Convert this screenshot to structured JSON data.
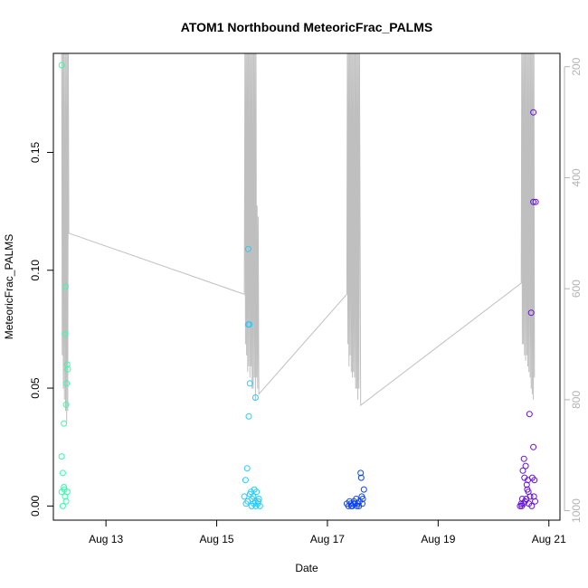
{
  "chart_data": {
    "type": "scatter",
    "title": "ATOM1 Northbound MeteoricFrac_PALMS",
    "xlabel": "Date",
    "ylabel": "MeteoricFrac_PALMS",
    "x_ticks": [
      "Aug 13",
      "Aug 15",
      "Aug 17",
      "Aug 19",
      "Aug 21"
    ],
    "x_tick_days": [
      13,
      15,
      17,
      19,
      21
    ],
    "xlim": [
      12.05,
      21.2
    ],
    "ylim": [
      -0.006,
      0.192
    ],
    "y_ticks": [
      "0.00",
      "0.05",
      "0.10",
      "0.15"
    ],
    "y_tick_values": [
      0.0,
      0.05,
      0.1,
      0.15
    ],
    "y2_ticks": [
      "200",
      "400",
      "600",
      "800",
      "1000"
    ],
    "y2_tick_values": [
      200,
      400,
      600,
      800,
      1000
    ],
    "y2lim": [
      1017,
      176
    ],
    "grid": false,
    "colors": {
      "series": [
        "#33ffaa",
        "#22ccff",
        "#1144ee",
        "#6611dd"
      ],
      "pressure_line": "#bfbfbf"
    },
    "series": [
      {
        "values": [
          [
            12.2,
            0.187
          ],
          [
            12.2,
            0.021
          ],
          [
            12.22,
            0.014
          ],
          [
            12.24,
            0.035
          ],
          [
            12.26,
            0.073
          ],
          [
            12.27,
            0.093
          ],
          [
            12.29,
            0.052
          ],
          [
            12.3,
            0.06
          ],
          [
            12.31,
            0.058
          ],
          [
            12.28,
            0.043
          ],
          [
            12.2,
            0.006
          ],
          [
            12.22,
            0.0
          ],
          [
            12.24,
            0.008
          ],
          [
            12.26,
            0.004
          ],
          [
            12.3,
            0.006
          ],
          [
            12.28,
            0.002
          ],
          [
            12.25,
            0.007
          ]
        ]
      },
      {
        "values": [
          [
            15.57,
            0.109
          ],
          [
            15.57,
            0.077
          ],
          [
            15.59,
            0.077
          ],
          [
            15.6,
            0.052
          ],
          [
            15.58,
            0.038
          ],
          [
            15.7,
            0.046
          ],
          [
            15.55,
            0.016
          ],
          [
            15.52,
            0.011
          ],
          [
            15.5,
            0.004
          ],
          [
            15.53,
            0.001
          ],
          [
            15.56,
            0.002
          ],
          [
            15.6,
            0.005
          ],
          [
            15.62,
            0.006
          ],
          [
            15.64,
            0.003
          ],
          [
            15.66,
            0.004
          ],
          [
            15.68,
            0.007
          ],
          [
            15.7,
            0.002
          ],
          [
            15.72,
            0.006
          ],
          [
            15.74,
            0.001
          ],
          [
            15.76,
            0.003
          ],
          [
            15.78,
            0.0
          ],
          [
            15.63,
            0.0
          ],
          [
            15.67,
            0.001
          ],
          [
            15.71,
            0.0
          ],
          [
            15.75,
            0.002
          ]
        ]
      },
      {
        "values": [
          [
            17.35,
            0.001
          ],
          [
            17.38,
            0.0
          ],
          [
            17.4,
            0.002
          ],
          [
            17.42,
            0.001
          ],
          [
            17.45,
            0.0
          ],
          [
            17.48,
            0.002
          ],
          [
            17.5,
            0.001
          ],
          [
            17.52,
            0.003
          ],
          [
            17.55,
            0.001
          ],
          [
            17.57,
            0.0
          ],
          [
            17.6,
            0.014
          ],
          [
            17.61,
            0.012
          ],
          [
            17.62,
            0.004
          ],
          [
            17.64,
            0.003
          ],
          [
            17.66,
            0.007
          ],
          [
            17.63,
            0.001
          ],
          [
            17.58,
            0.002
          ],
          [
            17.47,
            0.001
          ],
          [
            17.43,
            0.0
          ],
          [
            17.53,
            0.0
          ]
        ]
      },
      {
        "values": [
          [
            20.72,
            0.167
          ],
          [
            20.72,
            0.129
          ],
          [
            20.76,
            0.129
          ],
          [
            20.68,
            0.082
          ],
          [
            20.65,
            0.039
          ],
          [
            20.72,
            0.025
          ],
          [
            20.55,
            0.02
          ],
          [
            20.53,
            0.015
          ],
          [
            20.58,
            0.017
          ],
          [
            20.56,
            0.012
          ],
          [
            20.62,
            0.011
          ],
          [
            20.7,
            0.012
          ],
          [
            20.74,
            0.011
          ],
          [
            20.6,
            0.009
          ],
          [
            20.61,
            0.007
          ],
          [
            20.63,
            0.006
          ],
          [
            20.5,
            0.001
          ],
          [
            20.52,
            0.003
          ],
          [
            20.54,
            0.001
          ],
          [
            20.57,
            0.002
          ],
          [
            20.59,
            0.003
          ],
          [
            20.64,
            0.001
          ],
          [
            20.66,
            0.004
          ],
          [
            20.69,
            0.0
          ],
          [
            20.73,
            0.004
          ],
          [
            20.75,
            0.002
          ],
          [
            20.48,
            0.0
          ],
          [
            20.51,
            0.0
          ]
        ]
      }
    ],
    "pressure": [
      [
        12.2,
        176
      ],
      [
        12.21,
        720
      ],
      [
        12.22,
        176
      ],
      [
        12.23,
        780
      ],
      [
        12.24,
        176
      ],
      [
        12.25,
        800
      ],
      [
        12.26,
        176
      ],
      [
        12.27,
        820
      ],
      [
        12.28,
        176
      ],
      [
        12.29,
        840
      ],
      [
        12.3,
        176
      ],
      [
        12.31,
        820
      ],
      [
        12.32,
        176
      ],
      [
        12.33,
        500
      ],
      [
        15.5,
        610
      ],
      [
        15.51,
        176
      ],
      [
        15.52,
        700
      ],
      [
        15.53,
        176
      ],
      [
        15.54,
        720
      ],
      [
        15.55,
        176
      ],
      [
        15.56,
        750
      ],
      [
        15.57,
        176
      ],
      [
        15.58,
        740
      ],
      [
        15.59,
        176
      ],
      [
        15.6,
        760
      ],
      [
        15.61,
        176
      ],
      [
        15.62,
        740
      ],
      [
        15.63,
        176
      ],
      [
        15.64,
        780
      ],
      [
        15.65,
        176
      ],
      [
        15.66,
        780
      ],
      [
        15.67,
        176
      ],
      [
        15.68,
        760
      ],
      [
        15.69,
        176
      ],
      [
        15.7,
        800
      ],
      [
        15.71,
        176
      ],
      [
        15.72,
        760
      ],
      [
        15.73,
        450
      ],
      [
        15.74,
        780
      ],
      [
        15.75,
        470
      ],
      [
        15.76,
        790
      ],
      [
        17.35,
        610
      ],
      [
        17.36,
        176
      ],
      [
        17.37,
        700
      ],
      [
        17.38,
        176
      ],
      [
        17.39,
        740
      ],
      [
        17.4,
        176
      ],
      [
        17.41,
        720
      ],
      [
        17.42,
        176
      ],
      [
        17.43,
        750
      ],
      [
        17.44,
        176
      ],
      [
        17.45,
        760
      ],
      [
        17.46,
        176
      ],
      [
        17.47,
        750
      ],
      [
        17.48,
        176
      ],
      [
        17.49,
        760
      ],
      [
        17.5,
        176
      ],
      [
        17.51,
        780
      ],
      [
        17.52,
        176
      ],
      [
        17.53,
        780
      ],
      [
        17.54,
        176
      ],
      [
        17.55,
        800
      ],
      [
        17.56,
        176
      ],
      [
        17.57,
        780
      ],
      [
        17.58,
        176
      ],
      [
        17.6,
        810
      ],
      [
        20.5,
        590
      ],
      [
        20.51,
        176
      ],
      [
        20.52,
        700
      ],
      [
        20.53,
        176
      ],
      [
        20.54,
        700
      ],
      [
        20.55,
        176
      ],
      [
        20.56,
        720
      ],
      [
        20.57,
        176
      ],
      [
        20.58,
        730
      ],
      [
        20.59,
        176
      ],
      [
        20.6,
        720
      ],
      [
        20.61,
        176
      ],
      [
        20.62,
        740
      ],
      [
        20.63,
        176
      ],
      [
        20.64,
        750
      ],
      [
        20.65,
        176
      ],
      [
        20.66,
        760
      ],
      [
        20.67,
        176
      ],
      [
        20.68,
        780
      ],
      [
        20.69,
        176
      ],
      [
        20.7,
        790
      ],
      [
        20.71,
        176
      ],
      [
        20.72,
        800
      ],
      [
        20.73,
        176
      ],
      [
        20.74,
        760
      ]
    ]
  }
}
